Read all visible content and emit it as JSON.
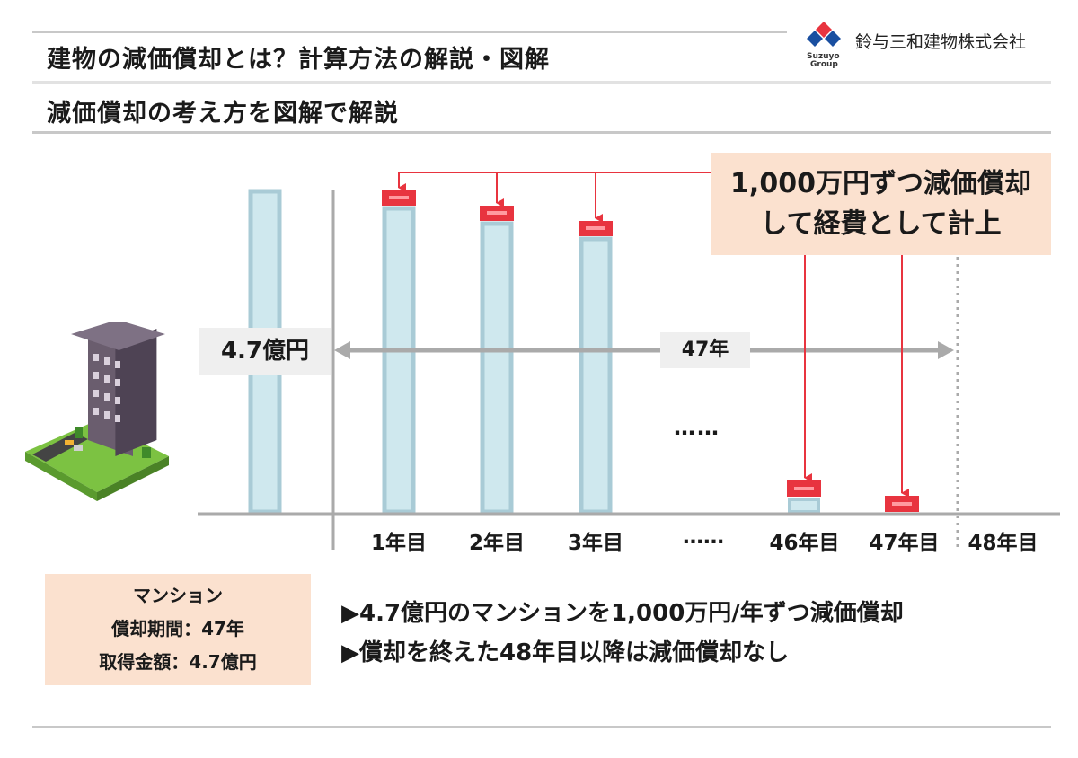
{
  "header": {
    "title": "建物の減価償却とは？計算方法の解説・図解",
    "subtitle": "減価償却の考え方を図解で解説",
    "company": "鈴与三和建物株式会社",
    "logo_text_1": "Suzuyo",
    "logo_text_2": "Group"
  },
  "diagram": {
    "callout_line1": "1,000万円ずつ減価償却",
    "callout_line2": "して経費として計上",
    "value_label": "4.7億円",
    "period_label": "47年",
    "ellipsis_mid": "……",
    "x_labels": [
      "1年目",
      "2年目",
      "3年目",
      "……",
      "46年目",
      "47年目",
      "48年目"
    ],
    "colors": {
      "bar_fill": "#cfe8ee",
      "bar_border": "#a9cbd6",
      "depreciation": "#e8343f",
      "arrow": "#e8343f",
      "axis": "#aaaaaa"
    }
  },
  "info_box": {
    "line1": "マンション",
    "line2": "償却期間：47年",
    "line3": "取得金額：4.7億円"
  },
  "bullets": [
    "▶4.7億円のマンションを1,000万円/年ずつ減価償却",
    "▶償却を終えた48年目以降は減価償却なし"
  ]
}
